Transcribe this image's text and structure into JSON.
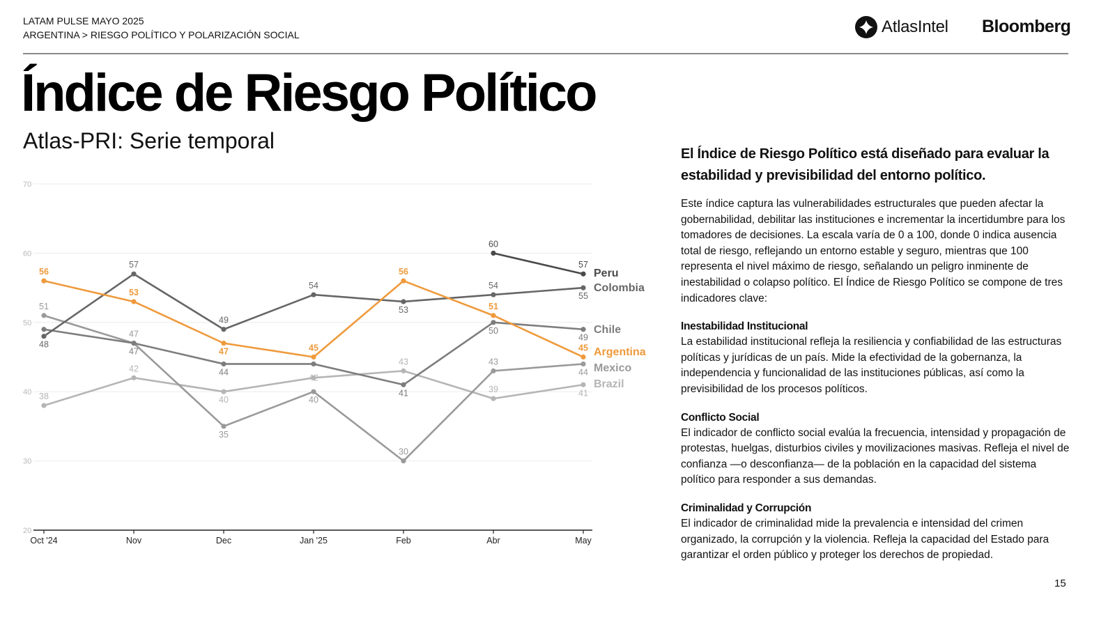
{
  "header": {
    "line1": "LATAM PULSE MAYO 2025",
    "line2": "ARGENTINA > RIESGO POLÍTICO Y POLARIZACIÓN SOCIAL",
    "logo_atlas": "AtlasIntel",
    "logo_bloomberg": "Bloomberg"
  },
  "title": "Índice de Riesgo Político",
  "subtitle": "Atlas-PRI: Serie temporal",
  "right_panel": {
    "lead": "El Índice de Riesgo Político está diseñado para evaluar la estabilidad y previsibilidad del entorno político.",
    "intro": "Este índice captura las vulnerabilidades estructurales que pueden afectar la gobernabilidad, debilitar las instituciones e incrementar la incertidumbre para los tomadores de decisiones. La escala varía de 0 a 100, donde 0 indica ausencia total de riesgo, reflejando un entorno estable y seguro, mientras que 100 representa el nivel máximo de riesgo, señalando un peligro inminente de inestabilidad o colapso político. El Índice de Riesgo Político se compone de tres indicadores clave:",
    "sections": [
      {
        "heading": "Inestabilidad Institucional",
        "body": "La estabilidad institucional refleja la resiliencia y confiabilidad de las estructuras políticas y jurídicas de un país. Mide la efectividad de la gobernanza, la independencia y funcionalidad de las instituciones públicas, así como la previsibilidad de los procesos políticos."
      },
      {
        "heading": "Conflicto Social",
        "body": "El indicador de conflicto social evalúa la frecuencia, intensidad y propagación de protestas, huelgas, disturbios civiles y movilizaciones masivas. Refleja el nivel de confianza —o desconfianza— de la población en la capacidad del sistema político para responder a sus demandas."
      },
      {
        "heading": "Criminalidad y Corrupción",
        "body": "El indicador de criminalidad mide la prevalencia e intensidad del crimen organizado, la corrupción y la violencia. Refleja la capacidad del Estado para garantizar el orden público y proteger los derechos de propiedad."
      }
    ]
  },
  "page_number": "15",
  "chart_data": {
    "type": "line",
    "title": "Índice de Riesgo Político",
    "subtitle": "Atlas-PRI: Serie temporal",
    "xlabel": "",
    "ylabel": "",
    "categories": [
      "Oct '24",
      "Nov",
      "Dec",
      "Jan '25",
      "Feb",
      "Abr",
      "May"
    ],
    "ylim": [
      20,
      70
    ],
    "yticks": [
      20,
      30,
      40,
      50,
      60,
      70
    ],
    "grid": true,
    "legend": "direct-labels-right",
    "series": [
      {
        "name": "Peru",
        "color": "#4a4a4a",
        "values": [
          null,
          null,
          null,
          null,
          null,
          60,
          57
        ],
        "label_pos": [
          "",
          "",
          "",
          "",
          "",
          "above",
          "above"
        ]
      },
      {
        "name": "Colombia",
        "color": "#666666",
        "values": [
          48,
          57,
          49,
          54,
          53,
          54,
          55
        ],
        "label_pos": [
          "below",
          "above",
          "above",
          "above",
          "below",
          "above",
          "below"
        ]
      },
      {
        "name": "Chile",
        "color": "#7d7d7d",
        "values": [
          49,
          47,
          44,
          44,
          41,
          50,
          49
        ],
        "label_pos": [
          "",
          "below",
          "below",
          "",
          "below",
          "below",
          "below"
        ]
      },
      {
        "name": "Argentina",
        "color": "#ef9a3c",
        "values": [
          56,
          53,
          47,
          45,
          56,
          51,
          45
        ],
        "label_pos": [
          "above",
          "above",
          "below",
          "above",
          "above",
          "above",
          "above"
        ]
      },
      {
        "name": "Mexico",
        "color": "#9a9a9a",
        "values": [
          51,
          47,
          35,
          40,
          30,
          43,
          44
        ],
        "label_pos": [
          "above",
          "above",
          "below",
          "below",
          "above",
          "above",
          "below"
        ]
      },
      {
        "name": "Brazil",
        "color": "#b5b5b5",
        "values": [
          38,
          42,
          40,
          42,
          43,
          39,
          41
        ],
        "label_pos": [
          "above",
          "above",
          "below",
          "onpoint",
          "above",
          "above",
          "below"
        ]
      }
    ]
  }
}
